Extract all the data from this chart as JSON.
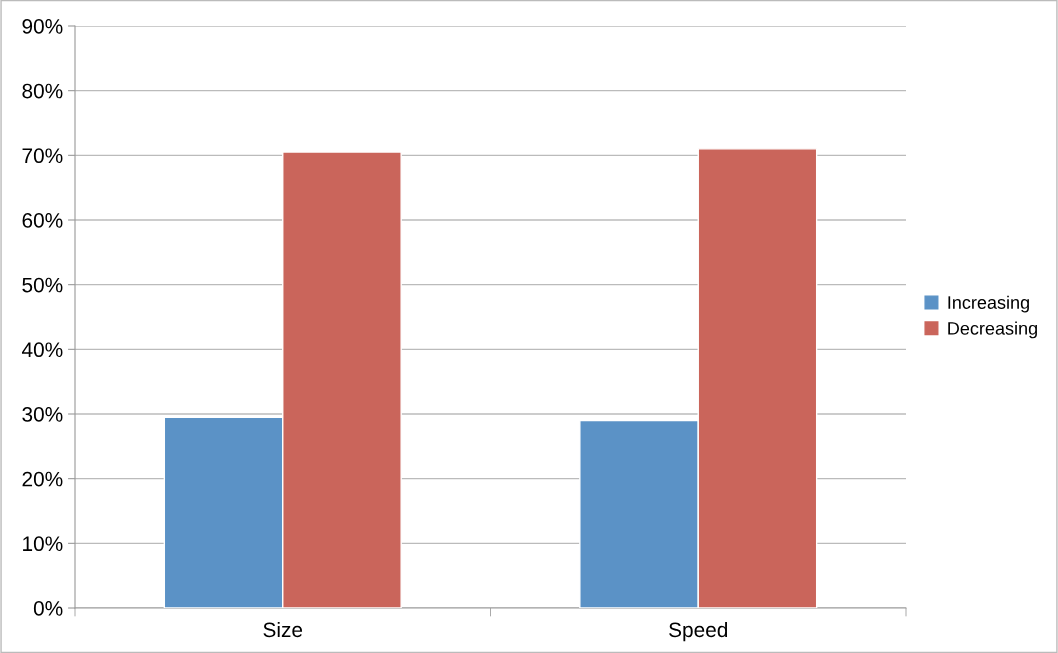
{
  "chart_data": {
    "type": "bar",
    "categories": [
      "Size",
      "Speed"
    ],
    "series": [
      {
        "name": "Increasing",
        "color": "#5b92c6",
        "values": [
          29.5,
          29
        ]
      },
      {
        "name": "Decreasing",
        "color": "#ca655b",
        "values": [
          70.5,
          71
        ]
      }
    ],
    "ylim": [
      0,
      90
    ],
    "yticks": [
      {
        "value": 0,
        "label": "0%"
      },
      {
        "value": 10,
        "label": "10%"
      },
      {
        "value": 20,
        "label": "20%"
      },
      {
        "value": 30,
        "label": "30%"
      },
      {
        "value": 40,
        "label": "40%"
      },
      {
        "value": 50,
        "label": "50%"
      },
      {
        "value": 60,
        "label": "60%"
      },
      {
        "value": 70,
        "label": "70%"
      },
      {
        "value": 80,
        "label": "80%"
      },
      {
        "value": 90,
        "label": "90%"
      }
    ],
    "grid": "y",
    "legend": "right"
  }
}
